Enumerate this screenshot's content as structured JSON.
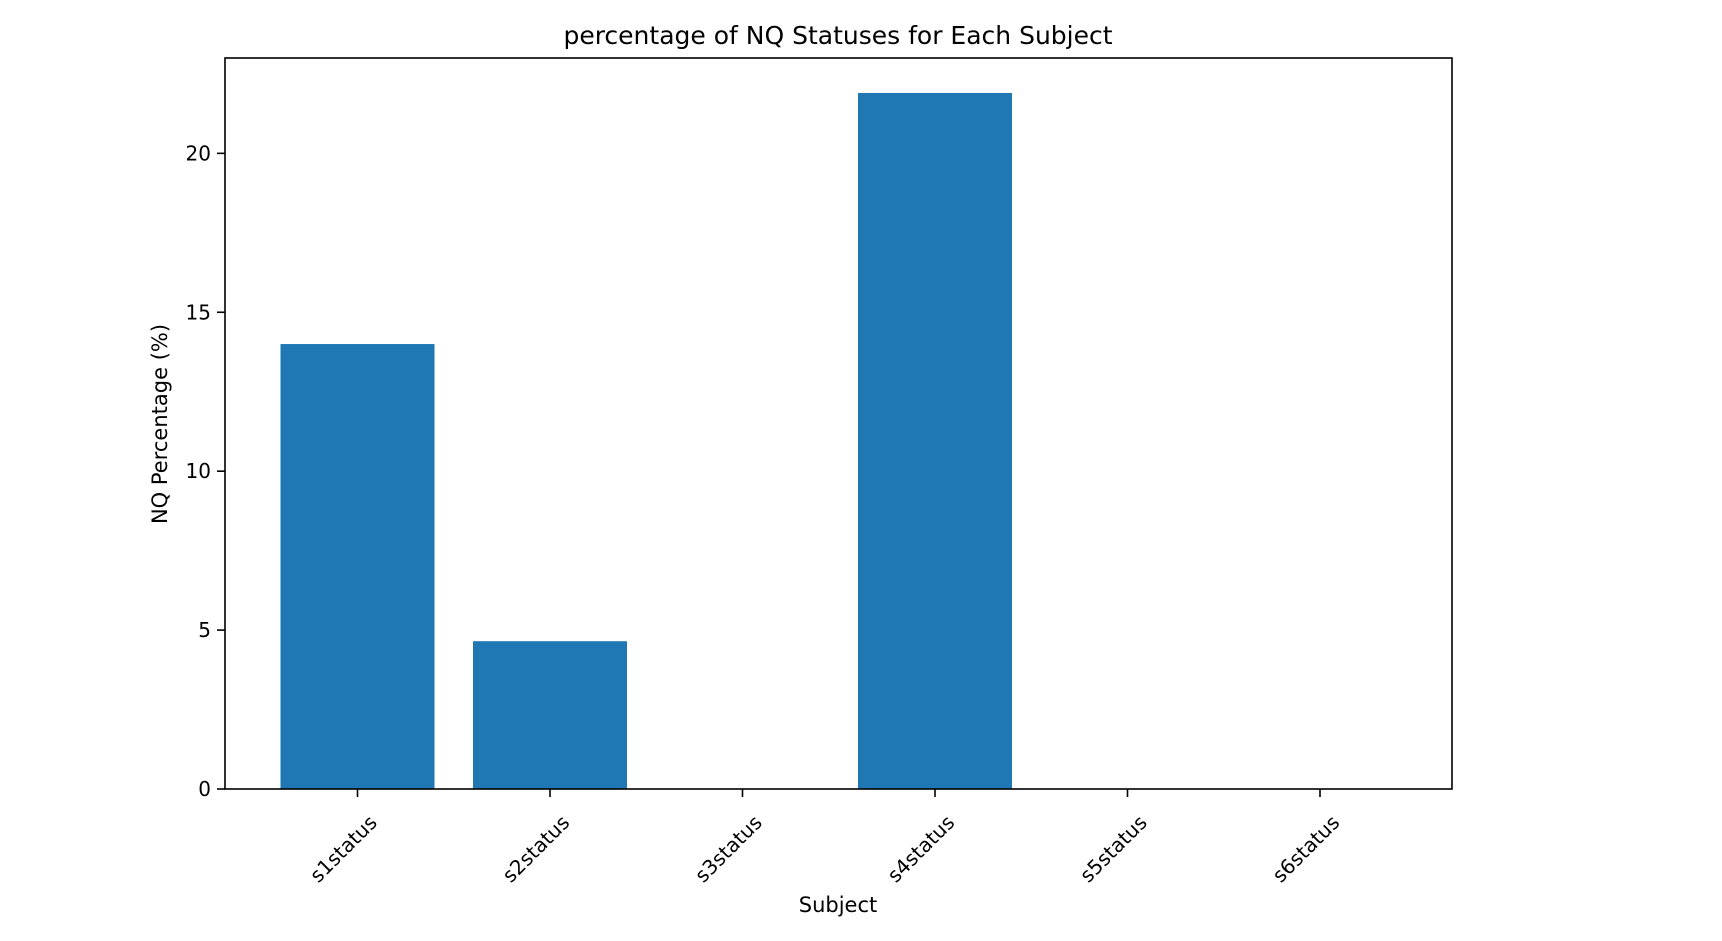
{
  "chart_data": {
    "type": "bar",
    "title": "percentage of NQ Statuses for Each Subject",
    "xlabel": "Subject",
    "ylabel": "NQ Percentage (%)",
    "categories": [
      "s1status",
      "s2status",
      "s3status",
      "s4status",
      "s5status",
      "s6status"
    ],
    "values": [
      14.0,
      4.65,
      0,
      21.9,
      0,
      0
    ],
    "ylim": [
      0,
      23
    ],
    "yticks": [
      0,
      5,
      10,
      15,
      20
    ],
    "bar_color": "#1f77b4",
    "grid": false,
    "legend": "none"
  }
}
